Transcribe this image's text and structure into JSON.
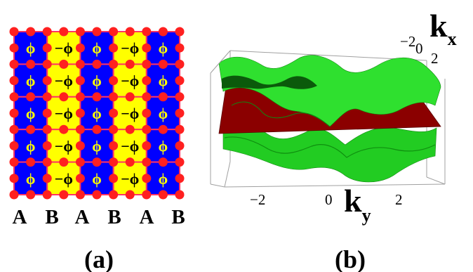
{
  "panel_a": {
    "caption": "(a)",
    "flux_positive": "ϕ",
    "flux_negative": "−ϕ",
    "column_labels": [
      "A",
      "B",
      "A",
      "B",
      "A",
      "B"
    ],
    "columns": [
      "blue",
      "yellow",
      "blue",
      "yellow",
      "blue"
    ],
    "rows": 5,
    "colors": {
      "blue": "#0000ff",
      "yellow": "#ffff00",
      "grid_line": "#ff3366",
      "site": "#ff2020",
      "phi_on_blue": "#ffff00",
      "phi_on_yellow": "#000000"
    }
  },
  "panel_b": {
    "caption": "(b)",
    "axis_kx_label": "k",
    "axis_kx_sub": "x",
    "axis_ky_label": "k",
    "axis_ky_sub": "y",
    "kx_ticks": [
      "−2",
      "0",
      "2"
    ],
    "ky_ticks": [
      "−2",
      "0",
      "2"
    ],
    "colors": {
      "band_surface": "#22dd22",
      "band_dark": "#0a6a0a",
      "flat_plane": "#8b0000",
      "box": "#999999"
    }
  }
}
